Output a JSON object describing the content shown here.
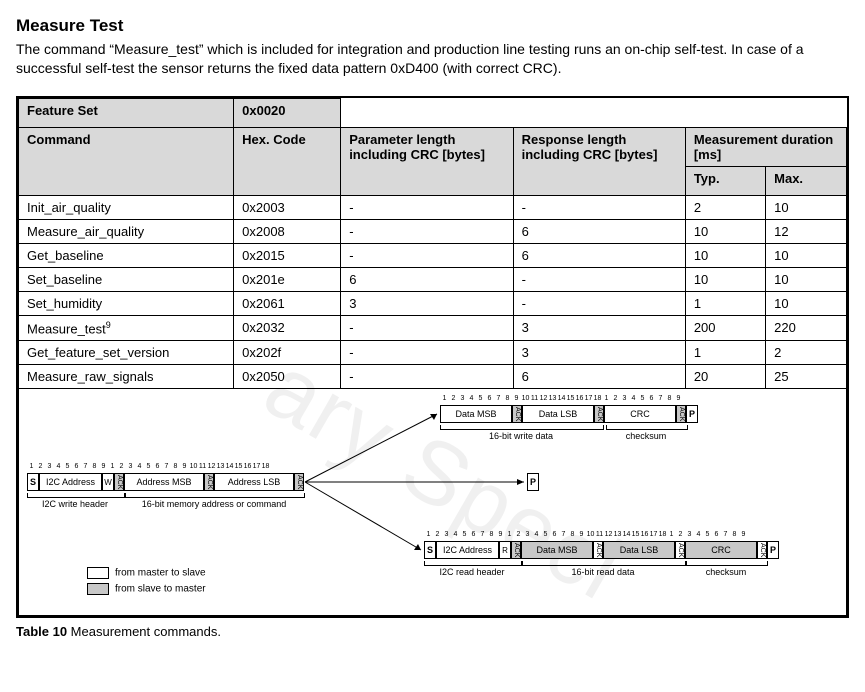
{
  "title": "Measure Test",
  "intro": "The command “Measure_test” which is included for integration and production line testing runs an on-chip self-test. In case of a successful self-test the sensor returns the fixed data pattern 0xD400 (with correct CRC).",
  "table": {
    "feature_set_label": "Feature Set",
    "feature_set_value": "0x0020",
    "command_label": "Command",
    "hex_code_label": "Hex. Code",
    "param_len_label": "Parameter length including CRC  [bytes]",
    "resp_len_label": "Response length including CRC [bytes]",
    "meas_dur_label": "Measurement duration [ms]",
    "typ_label": "Typ.",
    "max_label": "Max.",
    "rows": [
      {
        "cmd": "Init_air_quality",
        "hex": "0x2003",
        "param": "-",
        "resp": "-",
        "typ": "2",
        "max": "10",
        "sup": ""
      },
      {
        "cmd": "Measure_air_quality",
        "hex": "0x2008",
        "param": "-",
        "resp": "6",
        "typ": "10",
        "max": "12",
        "sup": ""
      },
      {
        "cmd": "Get_baseline",
        "hex": "0x2015",
        "param": "-",
        "resp": "6",
        "typ": "10",
        "max": "10",
        "sup": ""
      },
      {
        "cmd": "Set_baseline",
        "hex": "0x201e",
        "param": "6",
        "resp": "-",
        "typ": "10",
        "max": "10",
        "sup": ""
      },
      {
        "cmd": "Set_humidity",
        "hex": "0x2061",
        "param": "3",
        "resp": "-",
        "typ": "1",
        "max": "10",
        "sup": ""
      },
      {
        "cmd": "Measure_test",
        "hex": "0x2032",
        "param": "-",
        "resp": "3",
        "typ": "200",
        "max": "220",
        "sup": "9"
      },
      {
        "cmd": "Get_feature_set_version",
        "hex": "0x202f",
        "param": "-",
        "resp": "3",
        "typ": "1",
        "max": "2",
        "sup": ""
      },
      {
        "cmd": "Measure_raw_signals",
        "hex": "0x2050",
        "param": "-",
        "resp": "6",
        "typ": "20",
        "max": "25",
        "sup": ""
      }
    ]
  },
  "diagram": {
    "s": "S",
    "p": "P",
    "w": "W",
    "r": "R",
    "ack": "ACK",
    "i2c_address": "I2C Address",
    "address_msb": "Address MSB",
    "address_lsb": "Address LSB",
    "data_msb": "Data MSB",
    "data_lsb": "Data LSB",
    "crc": "CRC",
    "i2c_write_header": "I2C write header",
    "mem_addr": "16-bit memory address or command",
    "write_data": "16-bit write data",
    "checksum": "checksum",
    "i2c_read_header": "I2C read header",
    "read_data": "16-bit read data",
    "legend_master": "from master to slave",
    "legend_slave": "from slave to master",
    "watermark": "ary Speci"
  },
  "caption_bold": "Table 10",
  "caption_rest": " Measurement commands."
}
